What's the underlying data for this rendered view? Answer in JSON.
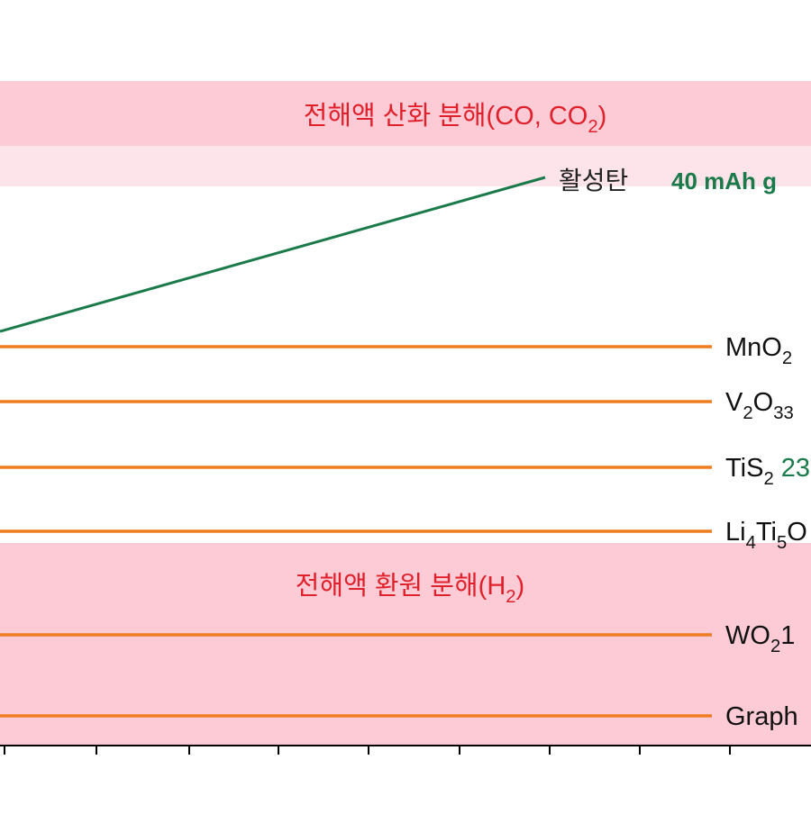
{
  "top_band": {
    "segments": [
      {
        "text": "전해액 산화 분해(CO, CO"
      },
      {
        "text": "2",
        "sub": true
      },
      {
        "text": ")"
      }
    ]
  },
  "bottom_band": {
    "segments": [
      {
        "text": "전해액 환원 분해(H"
      },
      {
        "text": "2",
        "sub": true
      },
      {
        "text": ")"
      }
    ]
  },
  "carbon_label": {
    "name": "활성탄",
    "capacity": "40 mAh g"
  },
  "electrodes": [
    {
      "segments": [
        {
          "text": "MnO"
        },
        {
          "text": "2",
          "sub": true
        }
      ]
    },
    {
      "segments": [
        {
          "text": "V"
        },
        {
          "text": "2",
          "sub": true
        },
        {
          "text": "O"
        },
        {
          "text": "33",
          "sub": true
        }
      ]
    },
    {
      "segments": [
        {
          "text": "TiS"
        },
        {
          "text": "2",
          "sub": true
        },
        {
          "text": " 23",
          "color": "#1a7a4a"
        }
      ]
    },
    {
      "segments": [
        {
          "text": "Li"
        },
        {
          "text": "4",
          "sub": true
        },
        {
          "text": "Ti"
        },
        {
          "text": "5",
          "sub": true
        },
        {
          "text": "O"
        }
      ]
    },
    {
      "segments": [
        {
          "text": "WO"
        },
        {
          "text": "2",
          "sub": true
        },
        {
          "text": "1"
        }
      ]
    },
    {
      "segments": [
        {
          "text": "Graph"
        }
      ]
    }
  ]
}
